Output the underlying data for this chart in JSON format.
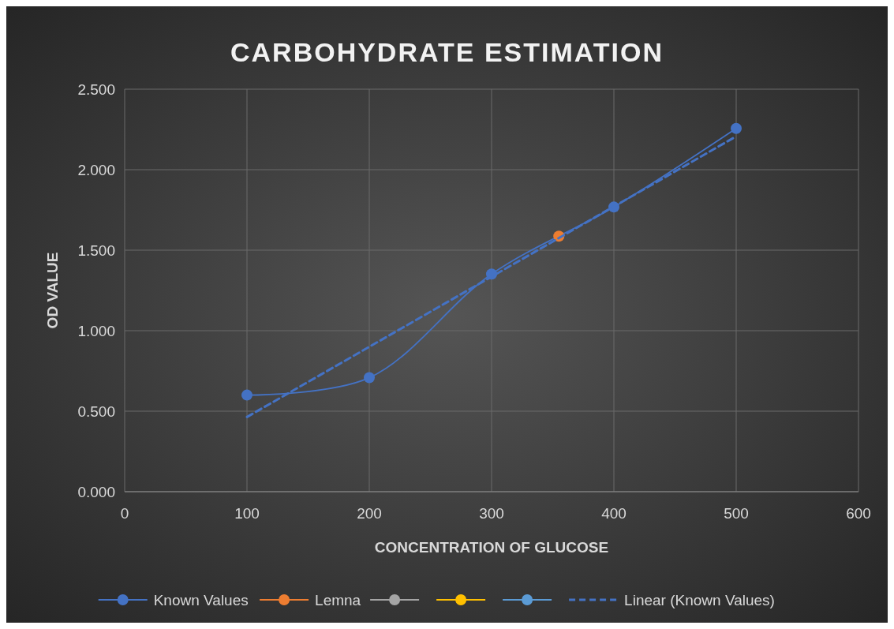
{
  "chart_data": {
    "type": "line",
    "title": "CARBOHYDRATE ESTIMATION",
    "xlabel": "CONCENTRATION OF GLUCOSE",
    "ylabel": "OD VALUE",
    "xlim": [
      0,
      600
    ],
    "xticks": [
      0,
      100,
      200,
      300,
      400,
      500,
      600
    ],
    "ylim": [
      0,
      2.5
    ],
    "yticks": [
      {
        "value": 0,
        "label": "0.000"
      },
      {
        "value": 0.5,
        "label": "0.500"
      },
      {
        "value": 1,
        "label": "1.000"
      },
      {
        "value": 1.5,
        "label": "1.500"
      },
      {
        "value": 2,
        "label": "2.000"
      },
      {
        "value": 2.5,
        "label": "2.500"
      }
    ],
    "grid": true,
    "legend": "bottom",
    "series": [
      {
        "name": "Known Values",
        "color": "#4472c4",
        "marker": "circle",
        "line_style": "solid",
        "x": [
          100,
          200,
          300,
          400,
          500
        ],
        "values": [
          0.6,
          0.708,
          1.352,
          1.768,
          2.256
        ]
      },
      {
        "name": "Lemna",
        "type": "scatter",
        "color": "#ed7d31",
        "marker": "circle",
        "x": [
          355
        ],
        "values": [
          1.587
        ]
      },
      {
        "color": "#a5a5a5",
        "marker": "circle"
      },
      {
        "color": "#ffc000",
        "marker": "circle"
      },
      {
        "color": "#5b9bd5",
        "marker": "circle"
      },
      {
        "name": "Linear (Known Values)",
        "type": "line",
        "color": "#4472c4",
        "marker": "none",
        "line_style": "dashed",
        "x": [
          100,
          500
        ],
        "values": [
          0.464,
          2.207
        ]
      }
    ]
  }
}
